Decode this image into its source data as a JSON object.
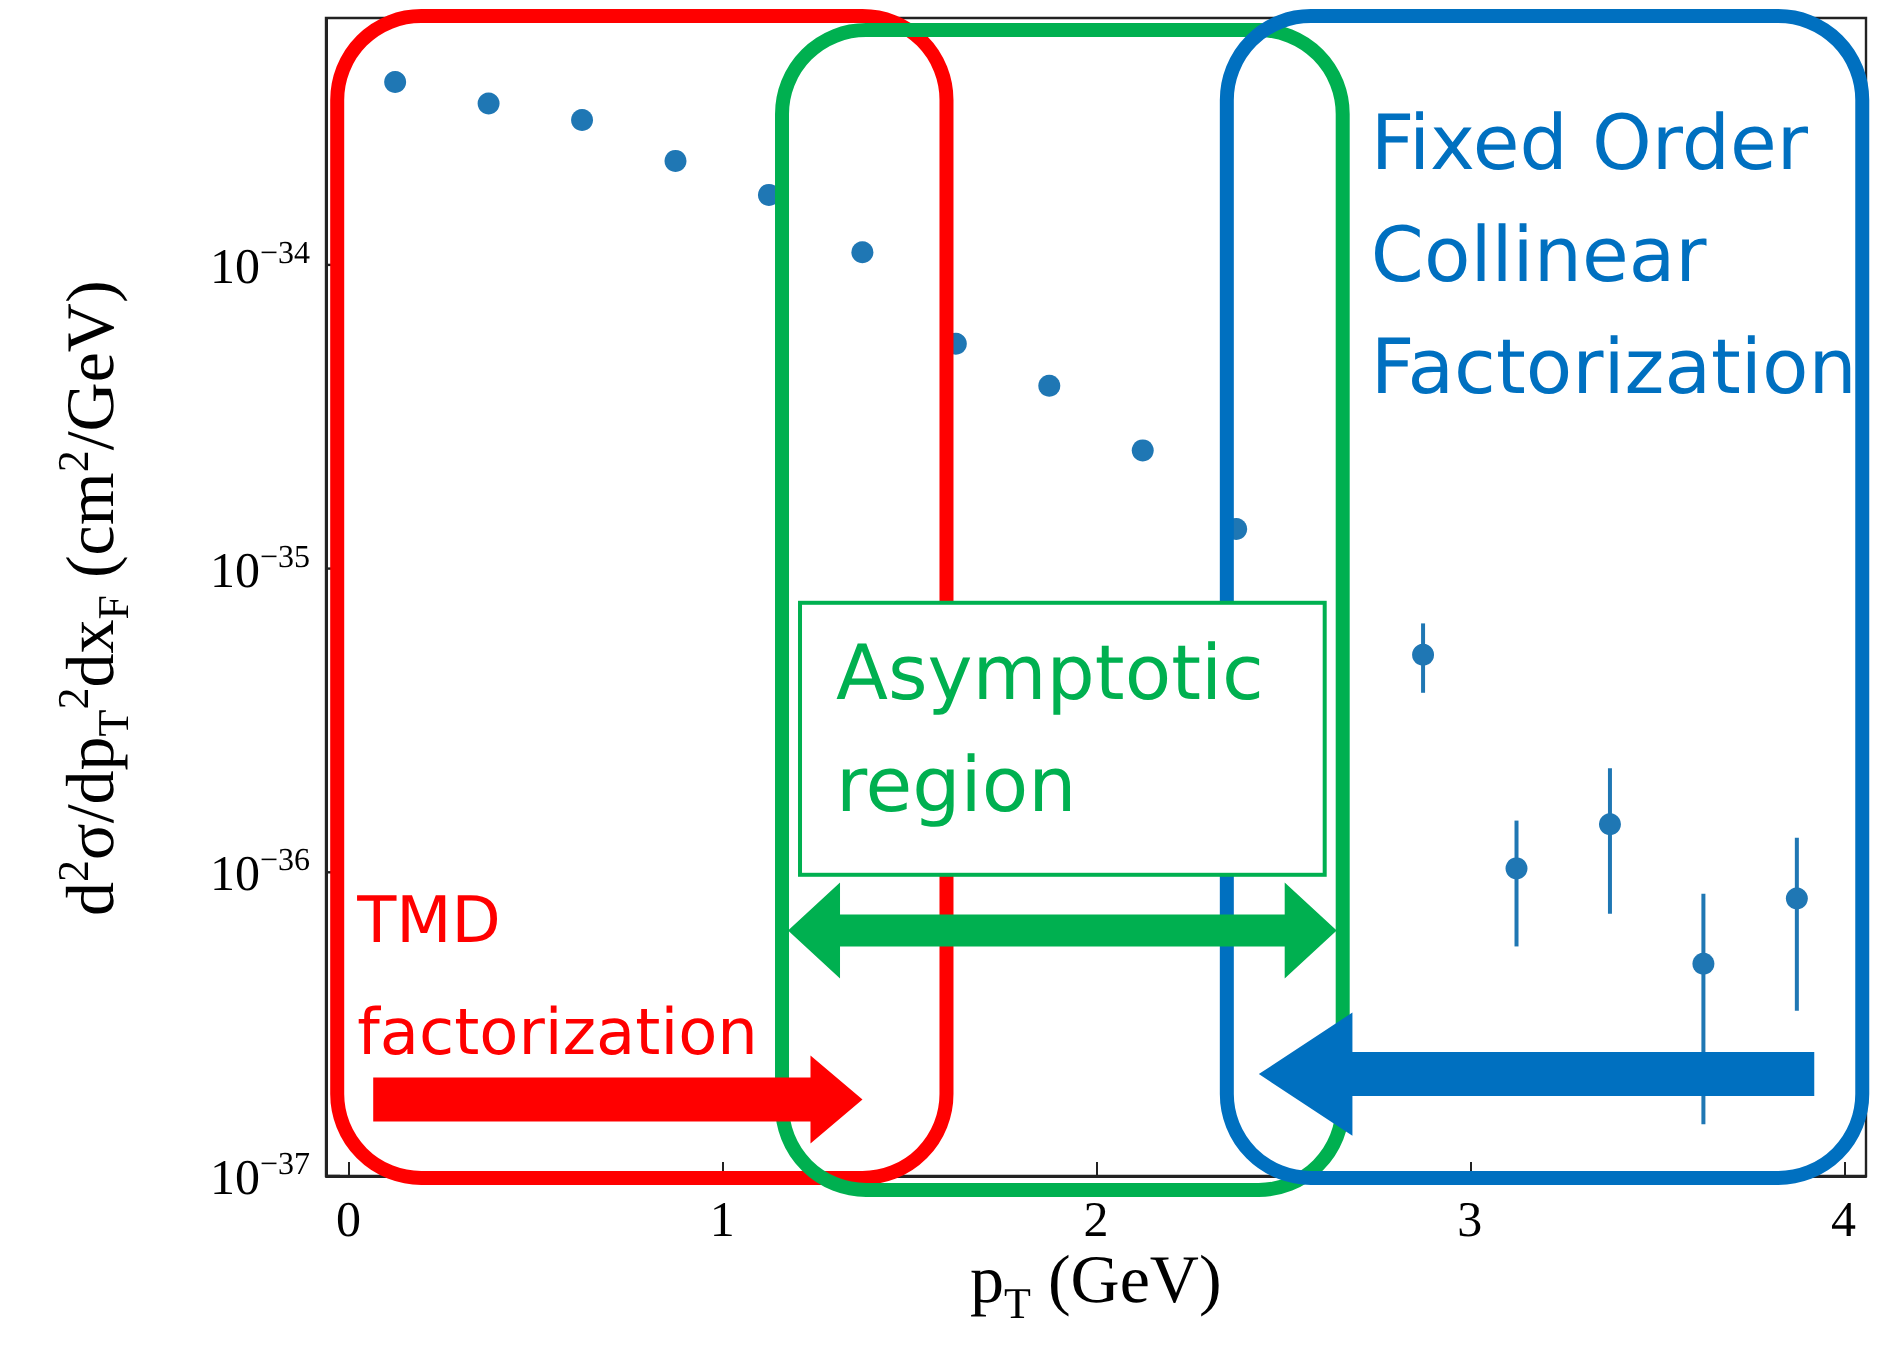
{
  "chart_data": {
    "type": "scatter",
    "xlabel": "p$_{T}$ (GeV)",
    "ylabel": "d$^{2}$σ/dp$_{T}$$^{2}$dx$_{F}$ (cm$^{2}$/GeV)",
    "annotations": [
      "TMD\nfactorization",
      "Asymptotic\nregion",
      "Fixed Order\nCollinear\nFactorization"
    ],
    "x": [
      0.125,
      0.375,
      0.625,
      0.875,
      1.125,
      1.375,
      1.625,
      1.875,
      2.125,
      2.375,
      2.625,
      2.875,
      3.125,
      3.375,
      3.625,
      3.875
    ],
    "series": [
      {
        "color": "#1f77b4",
        "values": [
          4e-34,
          3.4e-34,
          3e-34,
          2.2e-34,
          1.7e-34,
          1.1e-34,
          5.5e-35,
          4e-35,
          2.45e-35,
          1.35e-35,
          null,
          5.2e-36,
          1.03e-36,
          1.44e-36,
          5e-37,
          8.2e-37
        ],
        "errors": [
          null,
          null,
          null,
          null,
          null,
          null,
          null,
          null,
          null,
          null,
          null,
          [
            3.9e-36,
            6.6e-36
          ],
          [
            5.7e-37,
            1.48e-36
          ],
          [
            7.3e-37,
            2.2e-36
          ],
          [
            1.48e-37,
            8.5e-37
          ],
          [
            3.5e-37,
            1.3e-36
          ]
        ]
      }
    ],
    "marker": "circle",
    "xlim": [
      -0.06,
      4.06
    ],
    "xticks": [
      0,
      1,
      2,
      3,
      4
    ],
    "ylim": [
      1e-37,
      6.5e-34
    ],
    "log": true,
    "yticks": [
      {
        "value": 1e-37,
        "label": "10$^{−37}$"
      },
      {
        "value": 1e-36,
        "label": "10$^{−36}$"
      },
      {
        "value": 1e-35,
        "label": "10$^{−35}$"
      },
      {
        "value": 1e-34,
        "label": "10$^{−34}$"
      }
    ],
    "grid": false,
    "legend": false
  }
}
